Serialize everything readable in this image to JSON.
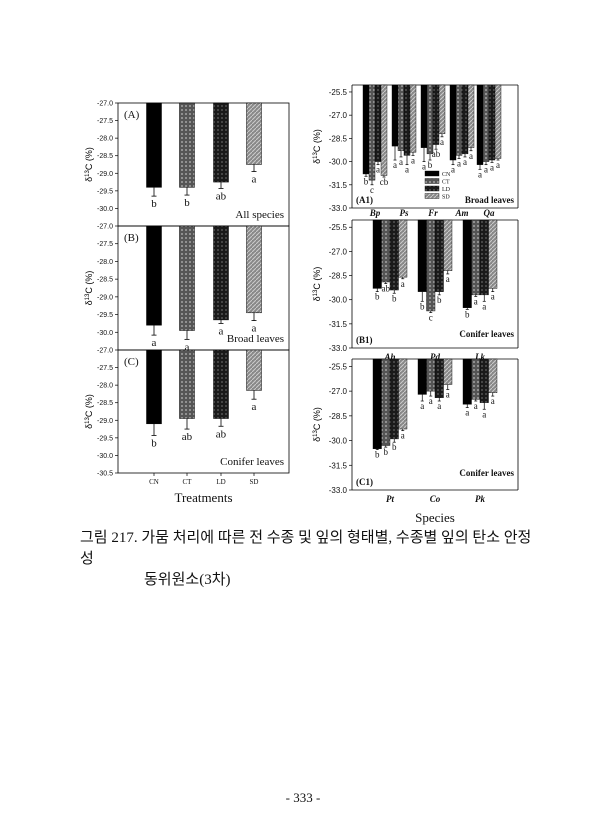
{
  "legend": [
    "CN",
    "CT",
    "LD",
    "SD"
  ],
  "ylabel": {
    "delta": "δ",
    "sup": "13",
    "rest": "C (%)"
  },
  "chart_data": [
    {
      "id": "A",
      "type": "bar",
      "label": "(A)",
      "note": "All species",
      "ylim": [
        -27.0,
        -30.5
      ],
      "yticks": [
        "-27.0",
        "-27.5",
        "-28.0",
        "-28.5",
        "-29.0",
        "-29.5",
        "-30.0"
      ],
      "categories": [
        "CN",
        "CT",
        "LD",
        "SD"
      ],
      "values": [
        -29.4,
        -29.4,
        -29.25,
        -28.75
      ],
      "errors": [
        0.25,
        0.22,
        0.18,
        0.2
      ],
      "letters": [
        "b",
        "b",
        "ab",
        "a"
      ]
    },
    {
      "id": "B",
      "type": "bar",
      "label": "(B)",
      "note": "Broad leaves",
      "ylim": [
        -27.0,
        -30.5
      ],
      "yticks": [
        "-27.0",
        "-27.5",
        "-28.0",
        "-28.5",
        "-29.0",
        "-29.5",
        "-30.0"
      ],
      "categories": [
        "CN",
        "CT",
        "LD",
        "SD"
      ],
      "values": [
        -29.8,
        -29.95,
        -29.65,
        -29.45
      ],
      "errors": [
        0.28,
        0.25,
        0.1,
        0.22
      ],
      "letters": [
        "a",
        "a",
        "a",
        "a"
      ]
    },
    {
      "id": "C",
      "type": "bar",
      "label": "(C)",
      "note": "Conifer leaves",
      "ylim": [
        -27.0,
        -30.5
      ],
      "yticks": [
        "-27.0",
        "-27.5",
        "-28.0",
        "-28.5",
        "-29.0",
        "-29.5",
        "-30.0",
        "-30.5"
      ],
      "categories": [
        "CN",
        "CT",
        "LD",
        "SD"
      ],
      "values": [
        -29.1,
        -28.95,
        -28.95,
        -28.15
      ],
      "errors": [
        0.33,
        0.3,
        0.22,
        0.25
      ],
      "letters": [
        "b",
        "ab",
        "ab",
        "a"
      ],
      "xlabel": "Treatments"
    },
    {
      "id": "A1",
      "type": "bar",
      "label": "(A1)",
      "note": "Broad leaves",
      "ylim": [
        -25.05,
        -33.0
      ],
      "yticks": [
        "-25.5",
        "-27.0",
        "-28.5",
        "-30.0",
        "-31.5",
        "-33.0"
      ],
      "categories": [
        "Bp",
        "Ps",
        "Fr",
        "Am",
        "Qa"
      ],
      "series": [
        {
          "name": "CN",
          "values": [
            -30.8,
            -29.0,
            -29.1,
            -29.9,
            -30.2
          ],
          "errors": [
            0.15,
            0.9,
            0.9,
            0.3,
            0.3
          ],
          "letters": [
            "b",
            "a",
            "a",
            "a",
            "a"
          ]
        },
        {
          "name": "CT",
          "values": [
            -31.2,
            -29.3,
            -29.5,
            -29.6,
            -30.0
          ],
          "errors": [
            0.3,
            0.4,
            0.4,
            0.2,
            0.2
          ],
          "letters": [
            "c",
            "a",
            "b",
            "a",
            "a"
          ]
        },
        {
          "name": "LD",
          "values": [
            -30.0,
            -29.6,
            -28.9,
            -29.5,
            -29.9
          ],
          "errors": [
            0.2,
            0.6,
            0.3,
            0.2,
            0.15
          ],
          "letters": [
            "a",
            "a",
            "ab",
            "a",
            "a"
          ]
        },
        {
          "name": "SD",
          "values": [
            -30.9,
            -29.4,
            -28.2,
            -29.1,
            -29.8
          ],
          "errors": [
            0.1,
            0.2,
            0.2,
            0.2,
            0.1
          ],
          "letters": [
            "cb",
            "a",
            "a",
            "a",
            "a"
          ]
        }
      ]
    },
    {
      "id": "B1",
      "type": "bar",
      "label": "(B1)",
      "note": "Conifer leaves",
      "ylim": [
        -25.05,
        -33.0
      ],
      "yticks": [
        "-25.5",
        "-27.0",
        "-28.5",
        "-30.0",
        "-31.5",
        "-33.0"
      ],
      "categories": [
        "Ah",
        "Pd",
        "Lk"
      ],
      "series": [
        {
          "name": "CN",
          "values": [
            -29.3,
            -29.5,
            -30.5
          ],
          "errors": [
            0.2,
            0.6,
            0.1
          ],
          "letters": [
            "b",
            "b",
            "b"
          ]
        },
        {
          "name": "CT",
          "values": [
            -28.9,
            -30.7,
            -29.7
          ],
          "errors": [
            0.1,
            0.1,
            0.1
          ],
          "letters": [
            "ab",
            "c",
            "a"
          ]
        },
        {
          "name": "LD",
          "values": [
            -29.4,
            -29.5,
            -29.7
          ],
          "errors": [
            0.2,
            0.2,
            0.4
          ],
          "letters": [
            "b",
            "b",
            "a"
          ]
        },
        {
          "name": "SD",
          "values": [
            -28.6,
            -28.2,
            -29.3
          ],
          "errors": [
            0.1,
            0.2,
            0.2
          ],
          "letters": [
            "a",
            "a",
            "a"
          ]
        }
      ]
    },
    {
      "id": "C1",
      "type": "bar",
      "label": "(C1)",
      "note": "Conifer leaves",
      "ylim": [
        -25.05,
        -33.0
      ],
      "yticks": [
        "-25.5",
        "-27.0",
        "-28.5",
        "-30.0",
        "-31.5",
        "-33.0"
      ],
      "categories": [
        "Pt",
        "Co",
        "Pk"
      ],
      "series": [
        {
          "name": "CN",
          "values": [
            -30.5,
            -27.2,
            -27.8
          ],
          "errors": [
            0.05,
            0.4,
            0.2
          ],
          "letters": [
            "b",
            "a",
            "a"
          ]
        },
        {
          "name": "CT",
          "values": [
            -30.3,
            -27.0,
            -27.5
          ],
          "errors": [
            0.1,
            0.3,
            0.1
          ],
          "letters": [
            "b",
            "a",
            "a"
          ]
        },
        {
          "name": "LD",
          "values": [
            -29.9,
            -27.4,
            -27.7
          ],
          "errors": [
            0.2,
            0.2,
            0.4
          ],
          "letters": [
            "b",
            "a",
            "a"
          ]
        },
        {
          "name": "SD",
          "values": [
            -29.3,
            -26.6,
            -27.1
          ],
          "errors": [
            0.1,
            0.3,
            0.2
          ],
          "letters": [
            "a",
            "a",
            "a"
          ]
        }
      ],
      "xlabel": "Species"
    }
  ],
  "caption": {
    "line1": "그림 217. 가뭄 처리에 따른 전 수종 및 잎의 형태별, 수종별 잎의 탄소 안정성",
    "line2": "동위원소(3차)"
  },
  "page_number": "- 333 -"
}
